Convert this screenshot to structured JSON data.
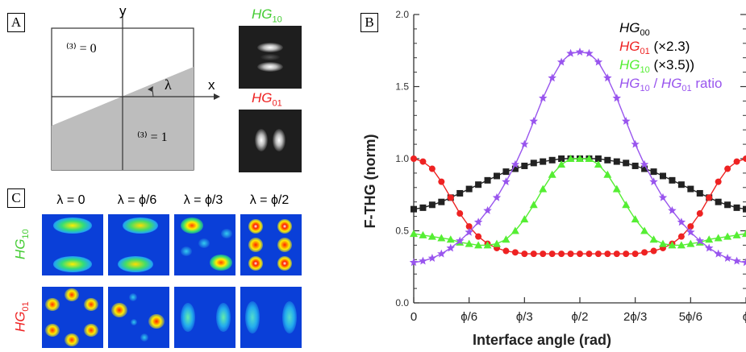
{
  "panel_a": {
    "letter": "A",
    "axis_y": "y",
    "axis_x": "x",
    "angle_symbol": "λ",
    "chi_upper": "⁽³⁾ = 0",
    "chi_lower": "⁽³⁾ = 1",
    "mode1_base": "HG",
    "mode1_sub": "10",
    "mode2_base": "HG",
    "mode2_sub": "01"
  },
  "panel_b": {
    "letter": "B"
  },
  "panel_c": {
    "letter": "C",
    "columns": [
      "λ = 0",
      "λ = ϕ/6",
      "λ = ϕ/3",
      "λ = ϕ/2"
    ],
    "row1_base": "HG",
    "row1_sub": "10",
    "row2_base": "HG",
    "row2_sub": "01"
  },
  "colors": {
    "hg00": "#222222",
    "hg01": "#ee2222",
    "hg10": "#55ee33",
    "ratio": "#9955ee"
  },
  "chart_data": {
    "type": "line",
    "title": "",
    "xlabel": "Interface angle (rad)",
    "ylabel": "F-THG (norm)",
    "xlim": [
      0,
      180
    ],
    "ylim": [
      0,
      2.0
    ],
    "x_unit_note": "interface angle in degrees (0 to π)",
    "x_ticks": [
      0,
      30,
      60,
      90,
      120,
      150,
      180
    ],
    "x_tick_labels": [
      "0",
      "ϕ/6",
      "ϕ/3",
      "ϕ/2",
      "2ϕ/3",
      "5ϕ/6",
      "ϕ"
    ],
    "y_ticks": [
      0,
      0.5,
      1.0,
      1.5,
      2.0
    ],
    "y_tick_labels": [
      "0.0",
      "0.5",
      "1.0",
      "1.5",
      "2.0"
    ],
    "legend_position": "top-right",
    "series": [
      {
        "name": "HG00",
        "legend_base": "HG",
        "legend_sub": "00",
        "legend_suffix": "",
        "color": "#222222",
        "marker": "square",
        "x": [
          0,
          5,
          10,
          15,
          20,
          25,
          30,
          35,
          40,
          45,
          50,
          55,
          60,
          65,
          70,
          75,
          80,
          85,
          90,
          95,
          100,
          105,
          110,
          115,
          120,
          125,
          130,
          135,
          140,
          145,
          150,
          155,
          160,
          165,
          170,
          175,
          180
        ],
        "y": [
          0.65,
          0.66,
          0.68,
          0.7,
          0.73,
          0.76,
          0.79,
          0.82,
          0.85,
          0.88,
          0.91,
          0.93,
          0.95,
          0.97,
          0.98,
          0.99,
          1.0,
          1.0,
          1.0,
          1.0,
          1.0,
          0.99,
          0.98,
          0.97,
          0.95,
          0.93,
          0.91,
          0.88,
          0.85,
          0.82,
          0.79,
          0.76,
          0.73,
          0.7,
          0.68,
          0.66,
          0.65
        ]
      },
      {
        "name": "HG01 (×2.3)",
        "legend_base": "HG",
        "legend_sub": "01",
        "legend_suffix": " (×2.3)",
        "color": "#ee2222",
        "marker": "circle",
        "x": [
          0,
          5,
          10,
          15,
          20,
          25,
          30,
          35,
          40,
          45,
          50,
          55,
          60,
          65,
          70,
          75,
          80,
          85,
          90,
          95,
          100,
          105,
          110,
          115,
          120,
          125,
          130,
          135,
          140,
          145,
          150,
          155,
          160,
          165,
          170,
          175,
          180
        ],
        "y": [
          1.0,
          0.98,
          0.93,
          0.84,
          0.73,
          0.62,
          0.53,
          0.46,
          0.41,
          0.38,
          0.36,
          0.35,
          0.34,
          0.34,
          0.34,
          0.34,
          0.34,
          0.34,
          0.34,
          0.34,
          0.34,
          0.34,
          0.34,
          0.34,
          0.34,
          0.35,
          0.36,
          0.38,
          0.41,
          0.46,
          0.53,
          0.62,
          0.73,
          0.84,
          0.93,
          0.98,
          1.0
        ]
      },
      {
        "name": "HG10 (×3.5))",
        "legend_base": "HG",
        "legend_sub": "10",
        "legend_suffix": " (×3.5))",
        "color": "#55ee33",
        "marker": "triangle",
        "x": [
          0,
          5,
          10,
          15,
          20,
          25,
          30,
          35,
          40,
          45,
          50,
          55,
          60,
          65,
          70,
          75,
          80,
          85,
          90,
          95,
          100,
          105,
          110,
          115,
          120,
          125,
          130,
          135,
          140,
          145,
          150,
          155,
          160,
          165,
          170,
          175,
          180
        ],
        "y": [
          0.48,
          0.47,
          0.46,
          0.45,
          0.44,
          0.42,
          0.41,
          0.4,
          0.4,
          0.41,
          0.44,
          0.5,
          0.58,
          0.68,
          0.79,
          0.89,
          0.96,
          1.0,
          1.0,
          1.0,
          0.96,
          0.89,
          0.79,
          0.68,
          0.58,
          0.5,
          0.44,
          0.41,
          0.4,
          0.4,
          0.41,
          0.42,
          0.44,
          0.45,
          0.46,
          0.47,
          0.48
        ]
      },
      {
        "name": "HG10 / HG01 ratio",
        "legend_base": "HG",
        "legend_sub": "10",
        "legend_mid": " / ",
        "legend_base2": "HG",
        "legend_sub2": "01",
        "legend_suffix": " ratio",
        "color": "#9955ee",
        "marker": "star",
        "x": [
          0,
          5,
          10,
          15,
          20,
          25,
          30,
          35,
          40,
          45,
          50,
          55,
          60,
          65,
          70,
          75,
          80,
          85,
          90,
          95,
          100,
          105,
          110,
          115,
          120,
          125,
          130,
          135,
          140,
          145,
          150,
          155,
          160,
          165,
          170,
          175,
          180
        ],
        "y": [
          0.28,
          0.29,
          0.31,
          0.34,
          0.38,
          0.43,
          0.49,
          0.56,
          0.64,
          0.73,
          0.84,
          0.96,
          1.1,
          1.26,
          1.42,
          1.56,
          1.67,
          1.73,
          1.74,
          1.73,
          1.67,
          1.56,
          1.42,
          1.26,
          1.1,
          0.96,
          0.84,
          0.73,
          0.64,
          0.56,
          0.49,
          0.43,
          0.38,
          0.34,
          0.31,
          0.29,
          0.28
        ]
      }
    ]
  }
}
